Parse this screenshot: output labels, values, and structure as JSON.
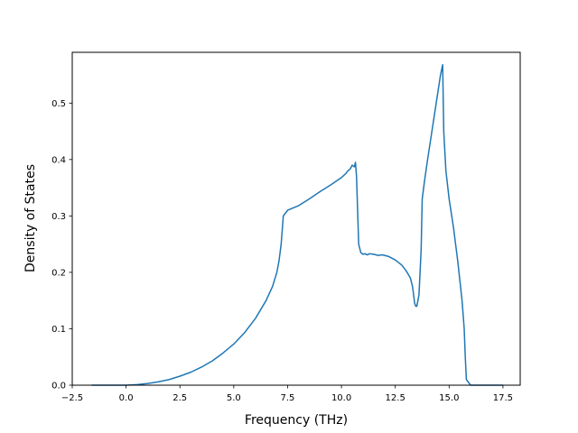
{
  "chart_data": {
    "type": "line",
    "title": "",
    "xlabel": "Frequency (THz)",
    "ylabel": "Density of States",
    "xlim": [
      -2.5,
      18.3
    ],
    "ylim": [
      0.0,
      0.59
    ],
    "xticks": [
      -2.5,
      0.0,
      2.5,
      5.0,
      7.5,
      10.0,
      12.5,
      15.0,
      17.5
    ],
    "xtick_labels": [
      "−2.5",
      "0.0",
      "2.5",
      "5.0",
      "7.5",
      "10.0",
      "12.5",
      "15.0",
      "17.5"
    ],
    "yticks": [
      0.0,
      0.1,
      0.2,
      0.3,
      0.4,
      0.5
    ],
    "ytick_labels": [
      "0.0",
      "0.1",
      "0.2",
      "0.3",
      "0.4",
      "0.5"
    ],
    "grid": false,
    "line_color": "#1f77b4",
    "series": [
      {
        "x": [
          -1.6,
          0.0,
          0.5,
          1.0,
          1.5,
          2.0,
          2.5,
          3.0,
          3.5,
          4.0,
          4.5,
          5.0,
          5.5,
          6.0,
          6.5,
          6.8,
          7.0,
          7.1,
          7.2,
          7.3,
          7.5,
          8.0,
          8.5,
          9.0,
          9.5,
          10.0,
          10.2,
          10.3,
          10.4,
          10.5,
          10.6,
          10.65,
          10.7,
          10.8,
          10.9,
          11.0,
          11.1,
          11.2,
          11.3,
          11.5,
          11.7,
          11.9,
          12.2,
          12.5,
          12.8,
          13.0,
          13.2,
          13.3,
          13.4,
          13.45,
          13.5,
          13.55,
          13.6,
          13.7,
          13.75,
          13.85,
          14.0,
          14.2,
          14.4,
          14.6,
          14.7,
          14.75,
          14.85,
          15.0,
          15.2,
          15.4,
          15.6,
          15.7,
          15.75,
          15.8,
          16.0,
          16.5,
          17.5
        ],
        "y": [
          0.0,
          0.0,
          0.001,
          0.003,
          0.006,
          0.01,
          0.016,
          0.023,
          0.032,
          0.043,
          0.057,
          0.073,
          0.093,
          0.118,
          0.15,
          0.175,
          0.2,
          0.22,
          0.25,
          0.3,
          0.31,
          0.318,
          0.33,
          0.343,
          0.355,
          0.368,
          0.375,
          0.38,
          0.383,
          0.39,
          0.387,
          0.395,
          0.37,
          0.25,
          0.235,
          0.232,
          0.233,
          0.231,
          0.233,
          0.232,
          0.23,
          0.231,
          0.228,
          0.222,
          0.213,
          0.203,
          0.19,
          0.175,
          0.145,
          0.14,
          0.14,
          0.15,
          0.16,
          0.24,
          0.33,
          0.36,
          0.4,
          0.45,
          0.5,
          0.55,
          0.568,
          0.45,
          0.38,
          0.33,
          0.28,
          0.22,
          0.15,
          0.1,
          0.05,
          0.01,
          0.0,
          0.0,
          0.0
        ]
      }
    ]
  }
}
